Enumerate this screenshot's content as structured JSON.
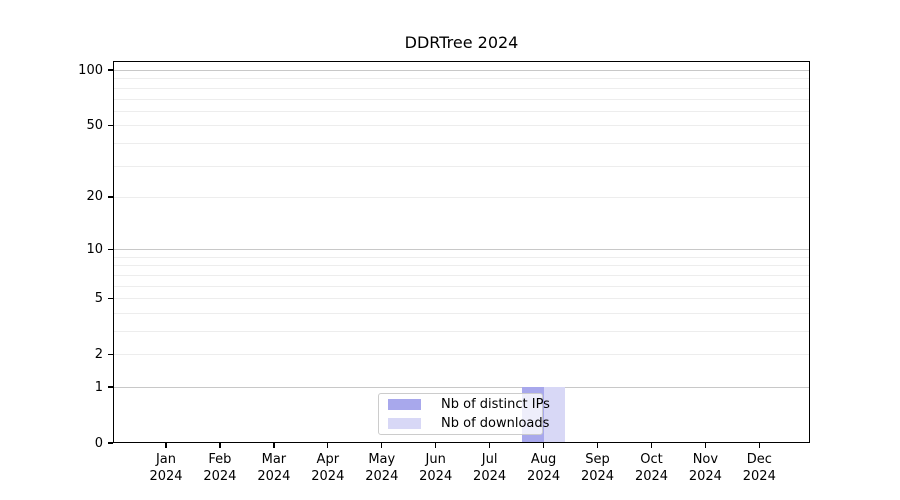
{
  "chart_data": {
    "type": "bar",
    "title": "DDRTree 2024",
    "categories": [
      "Jan 2024",
      "Feb 2024",
      "Mar 2024",
      "Apr 2024",
      "May 2024",
      "Jun 2024",
      "Jul 2024",
      "Aug 2024",
      "Sep 2024",
      "Oct 2024",
      "Nov 2024",
      "Dec 2024"
    ],
    "series": [
      {
        "name": "Nb of distinct IPs",
        "color": "#a8a8ec",
        "values": [
          0,
          0,
          0,
          0,
          0,
          0,
          0,
          1,
          0,
          0,
          0,
          0
        ]
      },
      {
        "name": "Nb of downloads",
        "color": "#d8d8f6",
        "values": [
          0,
          0,
          0,
          0,
          0,
          0,
          0,
          1,
          0,
          0,
          0,
          0
        ]
      }
    ],
    "xlabel": "",
    "ylabel": "",
    "ylim": [
      0,
      100
    ],
    "yscale": "log1p",
    "y_ticks": [
      0,
      1,
      2,
      5,
      10,
      20,
      50,
      100
    ],
    "y_minor_gridlines": [
      3,
      4,
      6,
      7,
      8,
      9,
      30,
      40,
      60,
      70,
      80,
      90
    ],
    "grid": true,
    "legend_position": "lower center",
    "colors": {
      "decade_grid": "#c8c8c8",
      "minor_grid": "#ededed",
      "axis": "#000000",
      "text": "#000000",
      "legend_border": "#cccccc",
      "background": "#ffffff"
    }
  }
}
